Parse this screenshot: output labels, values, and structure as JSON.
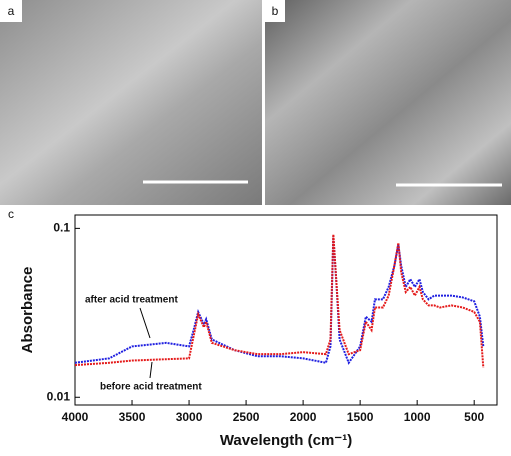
{
  "panel_labels": [
    "a",
    "b",
    "c"
  ],
  "chart_data": {
    "type": "line",
    "x_label": "Wavelength (cm⁻¹)",
    "y_label": "Absorbance",
    "annotations": [
      "after acid treatment",
      "before acid treatment"
    ],
    "yscale": "log",
    "xlim": [
      4000,
      300
    ],
    "ylim": [
      0.009,
      0.12
    ],
    "xticks": [
      4000,
      3500,
      3000,
      2500,
      2000,
      1500,
      1000,
      500
    ],
    "yticks": [
      0.1,
      0.01
    ],
    "x": [
      4000,
      3700,
      3500,
      3200,
      3000,
      2960,
      2920,
      2870,
      2850,
      2800,
      2600,
      2400,
      2200,
      2000,
      1800,
      1760,
      1735,
      1710,
      1680,
      1600,
      1500,
      1450,
      1400,
      1370,
      1300,
      1250,
      1200,
      1165,
      1140,
      1100,
      1060,
      1020,
      980,
      950,
      900,
      850,
      800,
      700,
      600,
      500,
      450,
      420
    ],
    "series": [
      {
        "name": "after acid treatment",
        "color": "#1f1fe0",
        "values": [
          0.016,
          0.017,
          0.02,
          0.021,
          0.02,
          0.025,
          0.032,
          0.027,
          0.029,
          0.022,
          0.019,
          0.0175,
          0.0175,
          0.017,
          0.016,
          0.02,
          0.09,
          0.05,
          0.022,
          0.016,
          0.02,
          0.03,
          0.028,
          0.038,
          0.038,
          0.045,
          0.06,
          0.08,
          0.06,
          0.045,
          0.05,
          0.045,
          0.05,
          0.042,
          0.038,
          0.04,
          0.04,
          0.04,
          0.039,
          0.037,
          0.03,
          0.02
        ]
      },
      {
        "name": "before acid treatment",
        "color": "#e41a1a",
        "values": [
          0.0155,
          0.016,
          0.0165,
          0.0168,
          0.017,
          0.023,
          0.031,
          0.026,
          0.028,
          0.021,
          0.019,
          0.018,
          0.018,
          0.0185,
          0.018,
          0.022,
          0.092,
          0.05,
          0.025,
          0.018,
          0.019,
          0.028,
          0.025,
          0.034,
          0.034,
          0.04,
          0.06,
          0.082,
          0.055,
          0.042,
          0.045,
          0.04,
          0.045,
          0.038,
          0.035,
          0.035,
          0.034,
          0.035,
          0.034,
          0.032,
          0.028,
          0.015
        ]
      }
    ]
  }
}
